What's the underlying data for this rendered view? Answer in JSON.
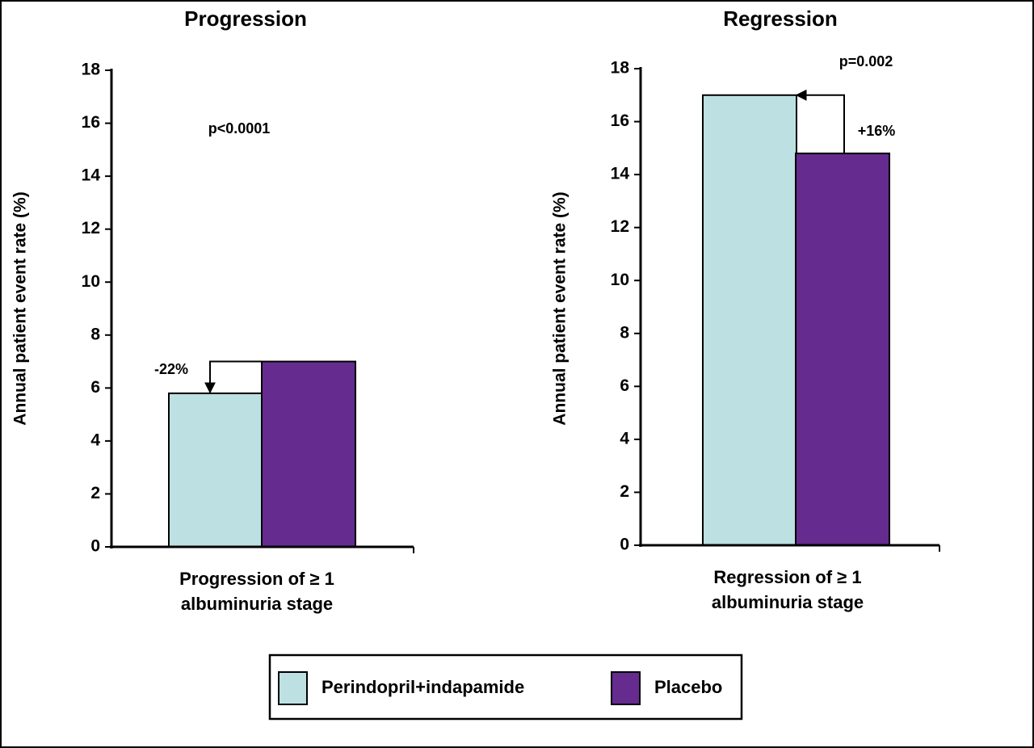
{
  "chart_data": [
    {
      "type": "bar",
      "title": "Progression",
      "ylabel": "Annual patient event rate (%)",
      "xlabel": [
        "Progression of ≥ 1",
        "albuminuria stage"
      ],
      "series": [
        {
          "name": "Perindopril+indapamide",
          "color": "#bde0e2",
          "values": [
            5.8
          ]
        },
        {
          "name": "Placebo",
          "color": "#652b8f",
          "values": [
            7.0
          ]
        }
      ],
      "annotations": {
        "change": "-22%",
        "p": "p<0.0001"
      },
      "ylim": [
        0,
        18
      ],
      "yticks": [
        0,
        2,
        4,
        6,
        8,
        10,
        12,
        14,
        16,
        18
      ]
    },
    {
      "type": "bar",
      "title": "Regression",
      "ylabel": "Annual patient event rate (%)",
      "xlabel": [
        "Regression of ≥ 1",
        "albuminuria stage"
      ],
      "series": [
        {
          "name": "Perindopril+indapamide",
          "color": "#bde0e2",
          "values": [
            17.0
          ]
        },
        {
          "name": "Placebo",
          "color": "#652b8f",
          "values": [
            14.8
          ]
        }
      ],
      "annotations": {
        "change": "+16%",
        "p": "p=0.002"
      },
      "ylim": [
        0,
        18
      ],
      "yticks": [
        0,
        2,
        4,
        6,
        8,
        10,
        12,
        14,
        16,
        18
      ]
    }
  ]
}
